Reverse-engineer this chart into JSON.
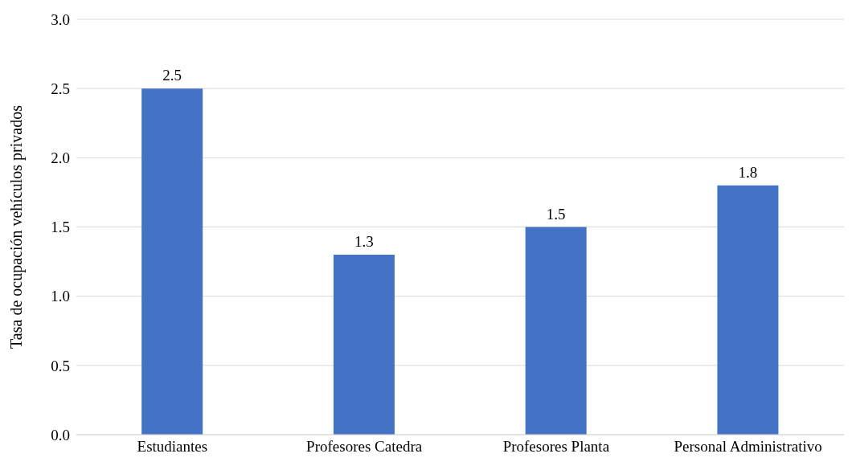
{
  "chart_data": {
    "type": "bar",
    "ylabel": "Tasa de ocupación vehículos privados",
    "categories": [
      "Estudiantes",
      "Profesores Catedra",
      "Profesores Planta",
      "Personal Administrativo"
    ],
    "values": [
      2.5,
      1.3,
      1.5,
      1.8
    ],
    "color": "#4472c4",
    "data_labels": true,
    "ylim": [
      0,
      3
    ],
    "yticks": [
      {
        "value": 0,
        "label": "0.0"
      },
      {
        "value": 0.5,
        "label": "0.5"
      },
      {
        "value": 1,
        "label": "1.0"
      },
      {
        "value": 1.5,
        "label": "1.5"
      },
      {
        "value": 2,
        "label": "2.0"
      },
      {
        "value": 2.5,
        "label": "2.5"
      },
      {
        "value": 3,
        "label": "3.0"
      }
    ],
    "grid": "y"
  }
}
